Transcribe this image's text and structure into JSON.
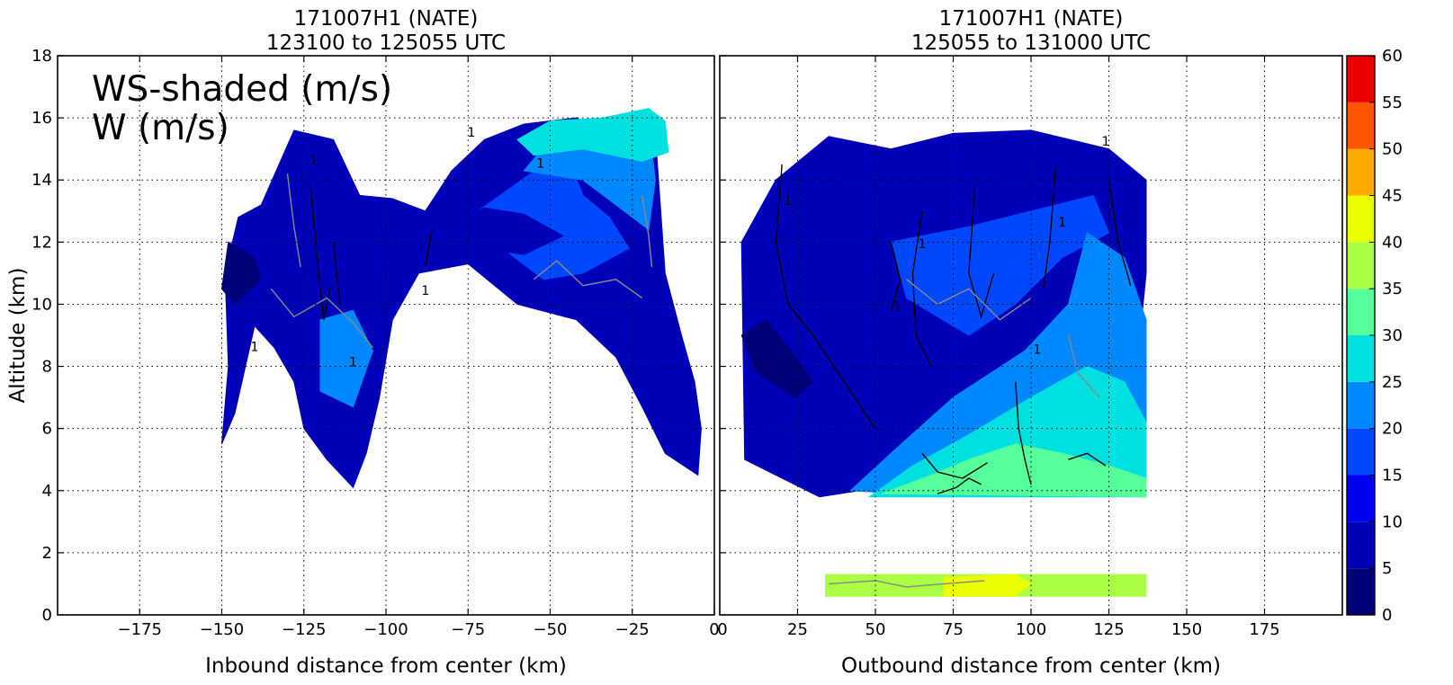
{
  "chart_data": [
    {
      "type": "heatmap",
      "title": "171007H1 (NATE)",
      "subtitle": "123100 to 125055 UTC",
      "xlabel": "Inbound distance from center (km)",
      "ylabel": "Altitude (km)",
      "xlim": [
        -200,
        0
      ],
      "ylim": [
        0,
        18
      ],
      "xticks": [
        -175,
        -150,
        -125,
        -100,
        -75,
        -50,
        -25,
        0
      ],
      "yticks": [
        0,
        2,
        4,
        6,
        8,
        10,
        12,
        14,
        16,
        18
      ],
      "grid": true,
      "annotation": [
        "WS-shaded (m/s)",
        "W (m/s)"
      ],
      "contour_label": "1",
      "color_regions": [
        {
          "color": "#0000b8",
          "points": [
            [
              -150,
              5.5
            ],
            [
              -148,
              8
            ],
            [
              -149,
              11
            ],
            [
              -145,
              12.8
            ],
            [
              -138,
              13.2
            ],
            [
              -128,
              15.6
            ],
            [
              -116,
              15.3
            ],
            [
              -108,
              13.5
            ],
            [
              -98,
              13.4
            ],
            [
              -88,
              13
            ],
            [
              -80,
              14.3
            ],
            [
              -70,
              15.3
            ],
            [
              -58,
              15.8
            ],
            [
              -42,
              16
            ],
            [
              -34,
              15.6
            ],
            [
              -18,
              15.5
            ],
            [
              -15,
              11
            ],
            [
              -10,
              9
            ],
            [
              -6,
              7.5
            ],
            [
              -4,
              6
            ],
            [
              -5,
              4.5
            ],
            [
              -15,
              5.2
            ],
            [
              -22,
              6.7
            ],
            [
              -30,
              8.3
            ],
            [
              -42,
              9.5
            ],
            [
              -60,
              10
            ],
            [
              -75,
              11.3
            ],
            [
              -90,
              11
            ],
            [
              -98,
              9.5
            ],
            [
              -102,
              7
            ],
            [
              -106,
              5.2
            ],
            [
              -110,
              4.1
            ],
            [
              -118,
              5
            ],
            [
              -125,
              6
            ],
            [
              -128,
              7.5
            ],
            [
              -134,
              8.6
            ],
            [
              -140,
              9.3
            ],
            [
              -146,
              6.5
            ]
          ]
        },
        {
          "color": "#0048ff",
          "points": [
            [
              -62,
              11.6
            ],
            [
              -72,
              13
            ],
            [
              -56,
              14.2
            ],
            [
              -44,
              14.6
            ],
            [
              -40,
              13.5
            ],
            [
              -32,
              12.8
            ],
            [
              -26,
              11.8
            ],
            [
              -40,
              11
            ],
            [
              -52,
              10.8
            ]
          ]
        },
        {
          "color": "#0088ff",
          "points": [
            [
              -58,
              14.3
            ],
            [
              -50,
              15.3
            ],
            [
              -42,
              15.6
            ],
            [
              -34,
              15.6
            ],
            [
              -20,
              15.8
            ],
            [
              -18,
              14
            ],
            [
              -20,
              12.4
            ],
            [
              -30,
              13.2
            ],
            [
              -40,
              14
            ]
          ]
        },
        {
          "color": "#0088ff",
          "points": [
            [
              -120,
              9.5
            ],
            [
              -110,
              9.8
            ],
            [
              -104,
              8.5
            ],
            [
              -110,
              6.7
            ],
            [
              -120,
              7.2
            ]
          ]
        },
        {
          "color": "#0000b8",
          "points": [
            [
              -108,
              13.5
            ],
            [
              -98,
              13.4
            ],
            [
              -88,
              12.8
            ],
            [
              -92,
              12.1
            ],
            [
              -104,
              12.6
            ]
          ]
        },
        {
          "color": "#0000b8",
          "points": [
            [
              -82,
              12.5
            ],
            [
              -70,
              13.1
            ],
            [
              -58,
              12.9
            ],
            [
              -46,
              12.2
            ],
            [
              -58,
              11.6
            ],
            [
              -70,
              11.8
            ]
          ]
        },
        {
          "color": "#00e0e0",
          "points": [
            [
              -60,
              15.3
            ],
            [
              -50,
              15.9
            ],
            [
              -34,
              16
            ],
            [
              -20,
              16.3
            ],
            [
              -15,
              15.9
            ],
            [
              -14,
              14.9
            ],
            [
              -22,
              14.6
            ],
            [
              -40,
              15
            ],
            [
              -55,
              14.8
            ]
          ]
        },
        {
          "color": "#000078",
          "points": [
            [
              -150,
              10.5
            ],
            [
              -148,
              12
            ],
            [
              -140,
              11.5
            ],
            [
              -138,
              10.8
            ],
            [
              -146,
              10
            ]
          ]
        },
        {
          "color": "#0000b8",
          "points": [
            [
              32,
              3.8
            ],
            [
              8,
              5
            ],
            [
              7,
              12
            ],
            [
              18,
              14
            ],
            [
              35,
              15.4
            ],
            [
              55,
              15
            ],
            [
              75,
              15.5
            ],
            [
              100,
              15.6
            ],
            [
              125,
              15
            ],
            [
              137,
              14
            ],
            [
              137,
              11
            ],
            [
              135,
              9
            ],
            [
              120,
              6.5
            ],
            [
              100,
              6
            ],
            [
              85,
              5.5
            ],
            [
              65,
              4.5
            ],
            [
              45,
              4
            ]
          ]
        },
        {
          "color": "#0048ff",
          "points": [
            [
              55,
              12
            ],
            [
              60,
              10.2
            ],
            [
              80,
              9
            ],
            [
              95,
              10
            ],
            [
              110,
              11.5
            ],
            [
              125,
              12.3
            ],
            [
              120,
              13.5
            ],
            [
              100,
              13
            ],
            [
              80,
              12.5
            ]
          ]
        },
        {
          "color": "#0088ff",
          "points": [
            [
              42,
              4
            ],
            [
              55,
              5.2
            ],
            [
              75,
              7
            ],
            [
              98,
              8.5
            ],
            [
              112,
              10
            ],
            [
              118,
              12.3
            ],
            [
              130,
              11.5
            ],
            [
              137,
              9.5
            ],
            [
              137,
              6
            ],
            [
              125,
              5
            ],
            [
              100,
              4.3
            ],
            [
              75,
              3.8
            ]
          ]
        },
        {
          "color": "#00e0e0",
          "points": [
            [
              48,
              3.8
            ],
            [
              62,
              4.8
            ],
            [
              80,
              5.8
            ],
            [
              100,
              7
            ],
            [
              118,
              8
            ],
            [
              130,
              7.5
            ],
            [
              137,
              6.2
            ],
            [
              137,
              3.8
            ]
          ]
        },
        {
          "color": "#55ff99",
          "points": [
            [
              52,
              3.9
            ],
            [
              68,
              4.5
            ],
            [
              80,
              5
            ],
            [
              95,
              5.5
            ],
            [
              110,
              5.2
            ],
            [
              125,
              4.8
            ],
            [
              137,
              4.4
            ],
            [
              137,
              3.8
            ]
          ]
        },
        {
          "color": "#000078",
          "points": [
            [
              7,
              9
            ],
            [
              15,
              9.5
            ],
            [
              25,
              8.2
            ],
            [
              30,
              7.5
            ],
            [
              24,
              7
            ],
            [
              12,
              7.8
            ]
          ]
        },
        {
          "color": "#aaff44",
          "points": [
            [
              34,
              1.3
            ],
            [
              100,
              1.3
            ],
            [
              137,
              1.3
            ],
            [
              137,
              0.6
            ],
            [
              100,
              0.6
            ],
            [
              34,
              0.6
            ]
          ]
        },
        {
          "color": "#eaff00",
          "points": [
            [
              72,
              1.2
            ],
            [
              95,
              1.3
            ],
            [
              100,
              1
            ],
            [
              95,
              0.6
            ],
            [
              72,
              0.6
            ]
          ]
        }
      ],
      "w_contours": [
        {
          "color": "#000000",
          "points": [
            [
              -123,
              13.8
            ],
            [
              -121,
              11.5
            ],
            [
              -119,
              9.5
            ],
            [
              -117,
              10.5
            ]
          ]
        },
        {
          "color": "#000000",
          "points": [
            [
              -116,
              12
            ],
            [
              -114,
              10
            ]
          ]
        },
        {
          "color": "#000000",
          "points": [
            [
              -88,
              11.2
            ],
            [
              -86,
              12.4
            ]
          ]
        },
        {
          "color": "#888888",
          "points": [
            [
              -135,
              10.5
            ],
            [
              -128,
              9.6
            ],
            [
              -118,
              10.2
            ],
            [
              -110,
              9.4
            ],
            [
              -104,
              8.6
            ]
          ]
        },
        {
          "color": "#888888",
          "points": [
            [
              -130,
              14.2
            ],
            [
              -128,
              12.5
            ],
            [
              -126,
              11.2
            ]
          ]
        },
        {
          "color": "#888888",
          "points": [
            [
              -55,
              10.8
            ],
            [
              -48,
              11.4
            ],
            [
              -40,
              10.6
            ],
            [
              -30,
              10.8
            ],
            [
              -22,
              10.2
            ]
          ]
        },
        {
          "color": "#888888",
          "points": [
            [
              -22,
              13.5
            ],
            [
              -20,
              12.2
            ],
            [
              -19,
              11.2
            ]
          ]
        },
        {
          "color": "#000000",
          "points": [
            [
              20,
              14.5
            ],
            [
              18,
              12
            ],
            [
              22,
              10
            ],
            [
              30,
              9
            ],
            [
              40,
              7.5
            ],
            [
              50,
              6
            ]
          ]
        },
        {
          "color": "#000000",
          "points": [
            [
              55,
              12
            ],
            [
              58,
              10.8
            ],
            [
              55,
              9.8
            ]
          ]
        },
        {
          "color": "#000000",
          "points": [
            [
              65,
              13
            ],
            [
              62,
              11
            ],
            [
              63,
              9
            ],
            [
              68,
              8
            ]
          ]
        },
        {
          "color": "#000000",
          "points": [
            [
              82,
              13.8
            ],
            [
              80,
              11
            ],
            [
              84,
              9.6
            ],
            [
              88,
              11
            ]
          ]
        },
        {
          "color": "#000000",
          "points": [
            [
              108,
              14.5
            ],
            [
              106,
              12
            ],
            [
              104,
              10.5
            ]
          ]
        },
        {
          "color": "#000000",
          "points": [
            [
              125,
              14
            ],
            [
              128,
              12
            ],
            [
              132,
              10.6
            ]
          ]
        },
        {
          "color": "#000000",
          "points": [
            [
              95,
              7.5
            ],
            [
              96,
              6
            ],
            [
              98,
              5
            ],
            [
              100,
              4.2
            ]
          ]
        },
        {
          "color": "#000000",
          "points": [
            [
              65,
              5.2
            ],
            [
              70,
              4.6
            ],
            [
              78,
              4.4
            ],
            [
              86,
              4.9
            ]
          ]
        },
        {
          "color": "#000000",
          "points": [
            [
              112,
              5
            ],
            [
              118,
              5.2
            ],
            [
              124,
              4.8
            ]
          ]
        },
        {
          "color": "#888888",
          "points": [
            [
              60,
              10.8
            ],
            [
              70,
              10
            ],
            [
              80,
              10.5
            ],
            [
              90,
              9.5
            ],
            [
              100,
              10.2
            ]
          ]
        },
        {
          "color": "#888888",
          "points": [
            [
              112,
              9
            ],
            [
              115,
              7.8
            ],
            [
              122,
              7
            ]
          ]
        },
        {
          "color": "#888888",
          "points": [
            [
              35,
              1
            ],
            [
              50,
              1.1
            ],
            [
              60,
              0.9
            ],
            [
              72,
              1
            ],
            [
              85,
              1.1
            ]
          ]
        },
        {
          "color": "#000000",
          "points": [
            [
              70,
              3.9
            ],
            [
              76,
              4.1
            ],
            [
              80,
              4.4
            ],
            [
              84,
              4.2
            ]
          ]
        }
      ]
    },
    {
      "type": "heatmap",
      "title": "171007H1 (NATE)",
      "subtitle": "125055 to 131000 UTC",
      "xlabel": "Outbound distance from center (km)",
      "ylabel": "",
      "xlim": [
        0,
        200
      ],
      "ylim": [
        0,
        18
      ],
      "xticks": [
        0,
        25,
        50,
        75,
        100,
        125,
        150,
        175
      ],
      "grid": true
    }
  ],
  "colorbar": {
    "ticks": [
      0,
      5,
      10,
      15,
      20,
      25,
      30,
      35,
      40,
      45,
      50,
      55,
      60
    ],
    "colors": [
      "#000078",
      "#0000b8",
      "#0000f0",
      "#0048ff",
      "#0088ff",
      "#00e0e0",
      "#55ff99",
      "#aaff44",
      "#eaff00",
      "#ffaa00",
      "#ff5500",
      "#e80000",
      "#800000"
    ]
  }
}
